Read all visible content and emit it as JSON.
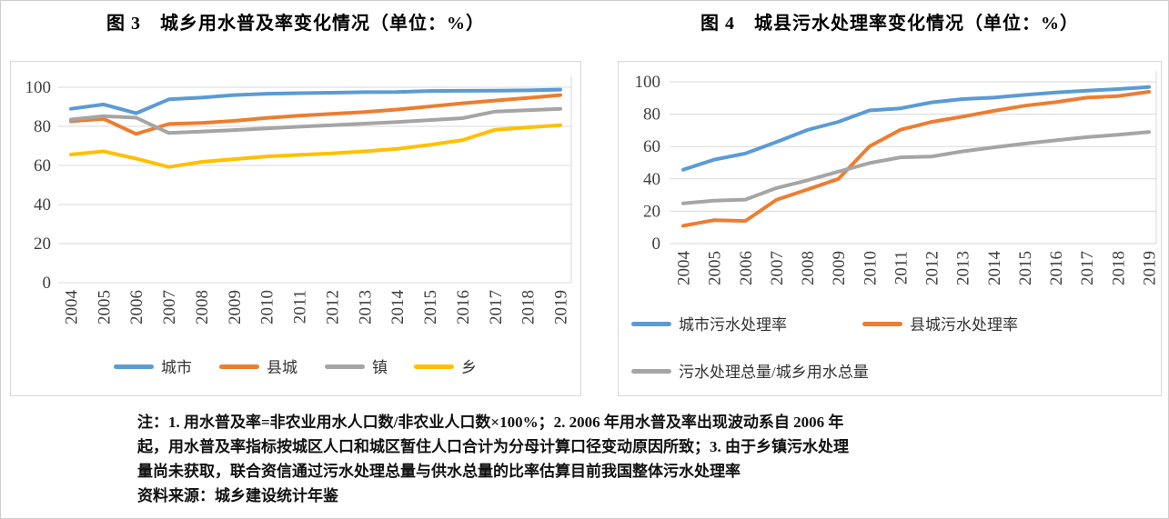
{
  "notes": {
    "lines": [
      "注：1. 用水普及率=非农业用水人口数/非农业人口数×100%；2. 2006 年用水普及率出现波动系自 2006 年",
      "起，用水普及率指标按城区人口和城区暂住人口合计为分母计算口径变动原因所致；3. 由于乡镇污水处理",
      "量尚未获取，联合资信通过污水处理总量与供水总量的比率估算目前我国整体污水处理率",
      "资料来源：城乡建设统计年鉴"
    ]
  },
  "colors": {
    "blue": "#5B9BD5",
    "orange": "#ED7D31",
    "gray": "#A5A5A5",
    "yellow": "#FFC000",
    "gridline": "#D9D9D9",
    "tick_text": "#404040"
  },
  "chart_data": [
    {
      "id": "chart3",
      "type": "line",
      "title": "图 3　城乡用水普及率变化情况（单位：%）",
      "categories": [
        "2004",
        "2005",
        "2006",
        "2007",
        "2008",
        "2009",
        "2010",
        "2011",
        "2012",
        "2013",
        "2014",
        "2015",
        "2016",
        "2017",
        "2018",
        "2019"
      ],
      "series": [
        {
          "name": "城市",
          "color": "#5B9BD5",
          "values": [
            89.0,
            91.2,
            86.7,
            93.8,
            94.7,
            96.0,
            96.7,
            97.0,
            97.2,
            97.5,
            97.6,
            98.1,
            98.2,
            98.3,
            98.4,
            98.8
          ]
        },
        {
          "name": "县城",
          "color": "#ED7D31",
          "values": [
            82.6,
            83.8,
            76.1,
            81.2,
            81.7,
            82.8,
            84.3,
            85.5,
            86.4,
            87.3,
            88.6,
            90.2,
            91.8,
            93.2,
            94.5,
            96.0
          ]
        },
        {
          "name": "镇",
          "color": "#A5A5A5",
          "values": [
            83.5,
            85.2,
            84.4,
            76.6,
            77.3,
            78.1,
            79.0,
            79.8,
            80.6,
            81.4,
            82.2,
            83.2,
            84.2,
            87.6,
            88.3,
            89.0
          ]
        },
        {
          "name": "乡",
          "color": "#FFC000",
          "values": [
            65.6,
            67.2,
            63.5,
            59.2,
            61.8,
            63.2,
            64.6,
            65.4,
            66.2,
            67.2,
            68.5,
            70.5,
            73.0,
            78.3,
            79.5,
            80.6
          ]
        }
      ],
      "ylim": [
        0,
        100
      ],
      "yticks": [
        0,
        20,
        40,
        60,
        80,
        100
      ],
      "grid": true,
      "legend_position": "bottom-center"
    },
    {
      "id": "chart4",
      "type": "line",
      "title": "图 4　城县污水处理率变化情况（单位：%）",
      "categories": [
        "2004",
        "2005",
        "2006",
        "2007",
        "2008",
        "2009",
        "2010",
        "2011",
        "2012",
        "2013",
        "2014",
        "2015",
        "2016",
        "2017",
        "2018",
        "2019"
      ],
      "series": [
        {
          "name": "城市污水处理率",
          "color": "#5B9BD5",
          "values": [
            45.7,
            51.9,
            55.7,
            62.8,
            70.2,
            75.3,
            82.3,
            83.6,
            87.3,
            89.3,
            90.2,
            91.9,
            93.4,
            94.5,
            95.5,
            96.8
          ]
        },
        {
          "name": "县城污水处理率",
          "color": "#ED7D31",
          "values": [
            11.0,
            14.5,
            14.0,
            27.0,
            33.4,
            40.0,
            60.1,
            70.4,
            75.2,
            78.5,
            82.0,
            85.2,
            87.4,
            90.2,
            91.2,
            93.8
          ]
        },
        {
          "name": "污水处理总量/城乡用水总量",
          "color": "#A5A5A5",
          "values": [
            24.9,
            26.5,
            27.2,
            34.3,
            39.1,
            44.5,
            49.8,
            53.3,
            53.8,
            57.0,
            59.5,
            61.8,
            63.8,
            65.8,
            67.3,
            69.0
          ]
        }
      ],
      "ylim": [
        0,
        100
      ],
      "yticks": [
        0,
        20,
        40,
        60,
        80,
        100
      ],
      "grid": true,
      "legend_position": "bottom-left-two-rows"
    }
  ]
}
